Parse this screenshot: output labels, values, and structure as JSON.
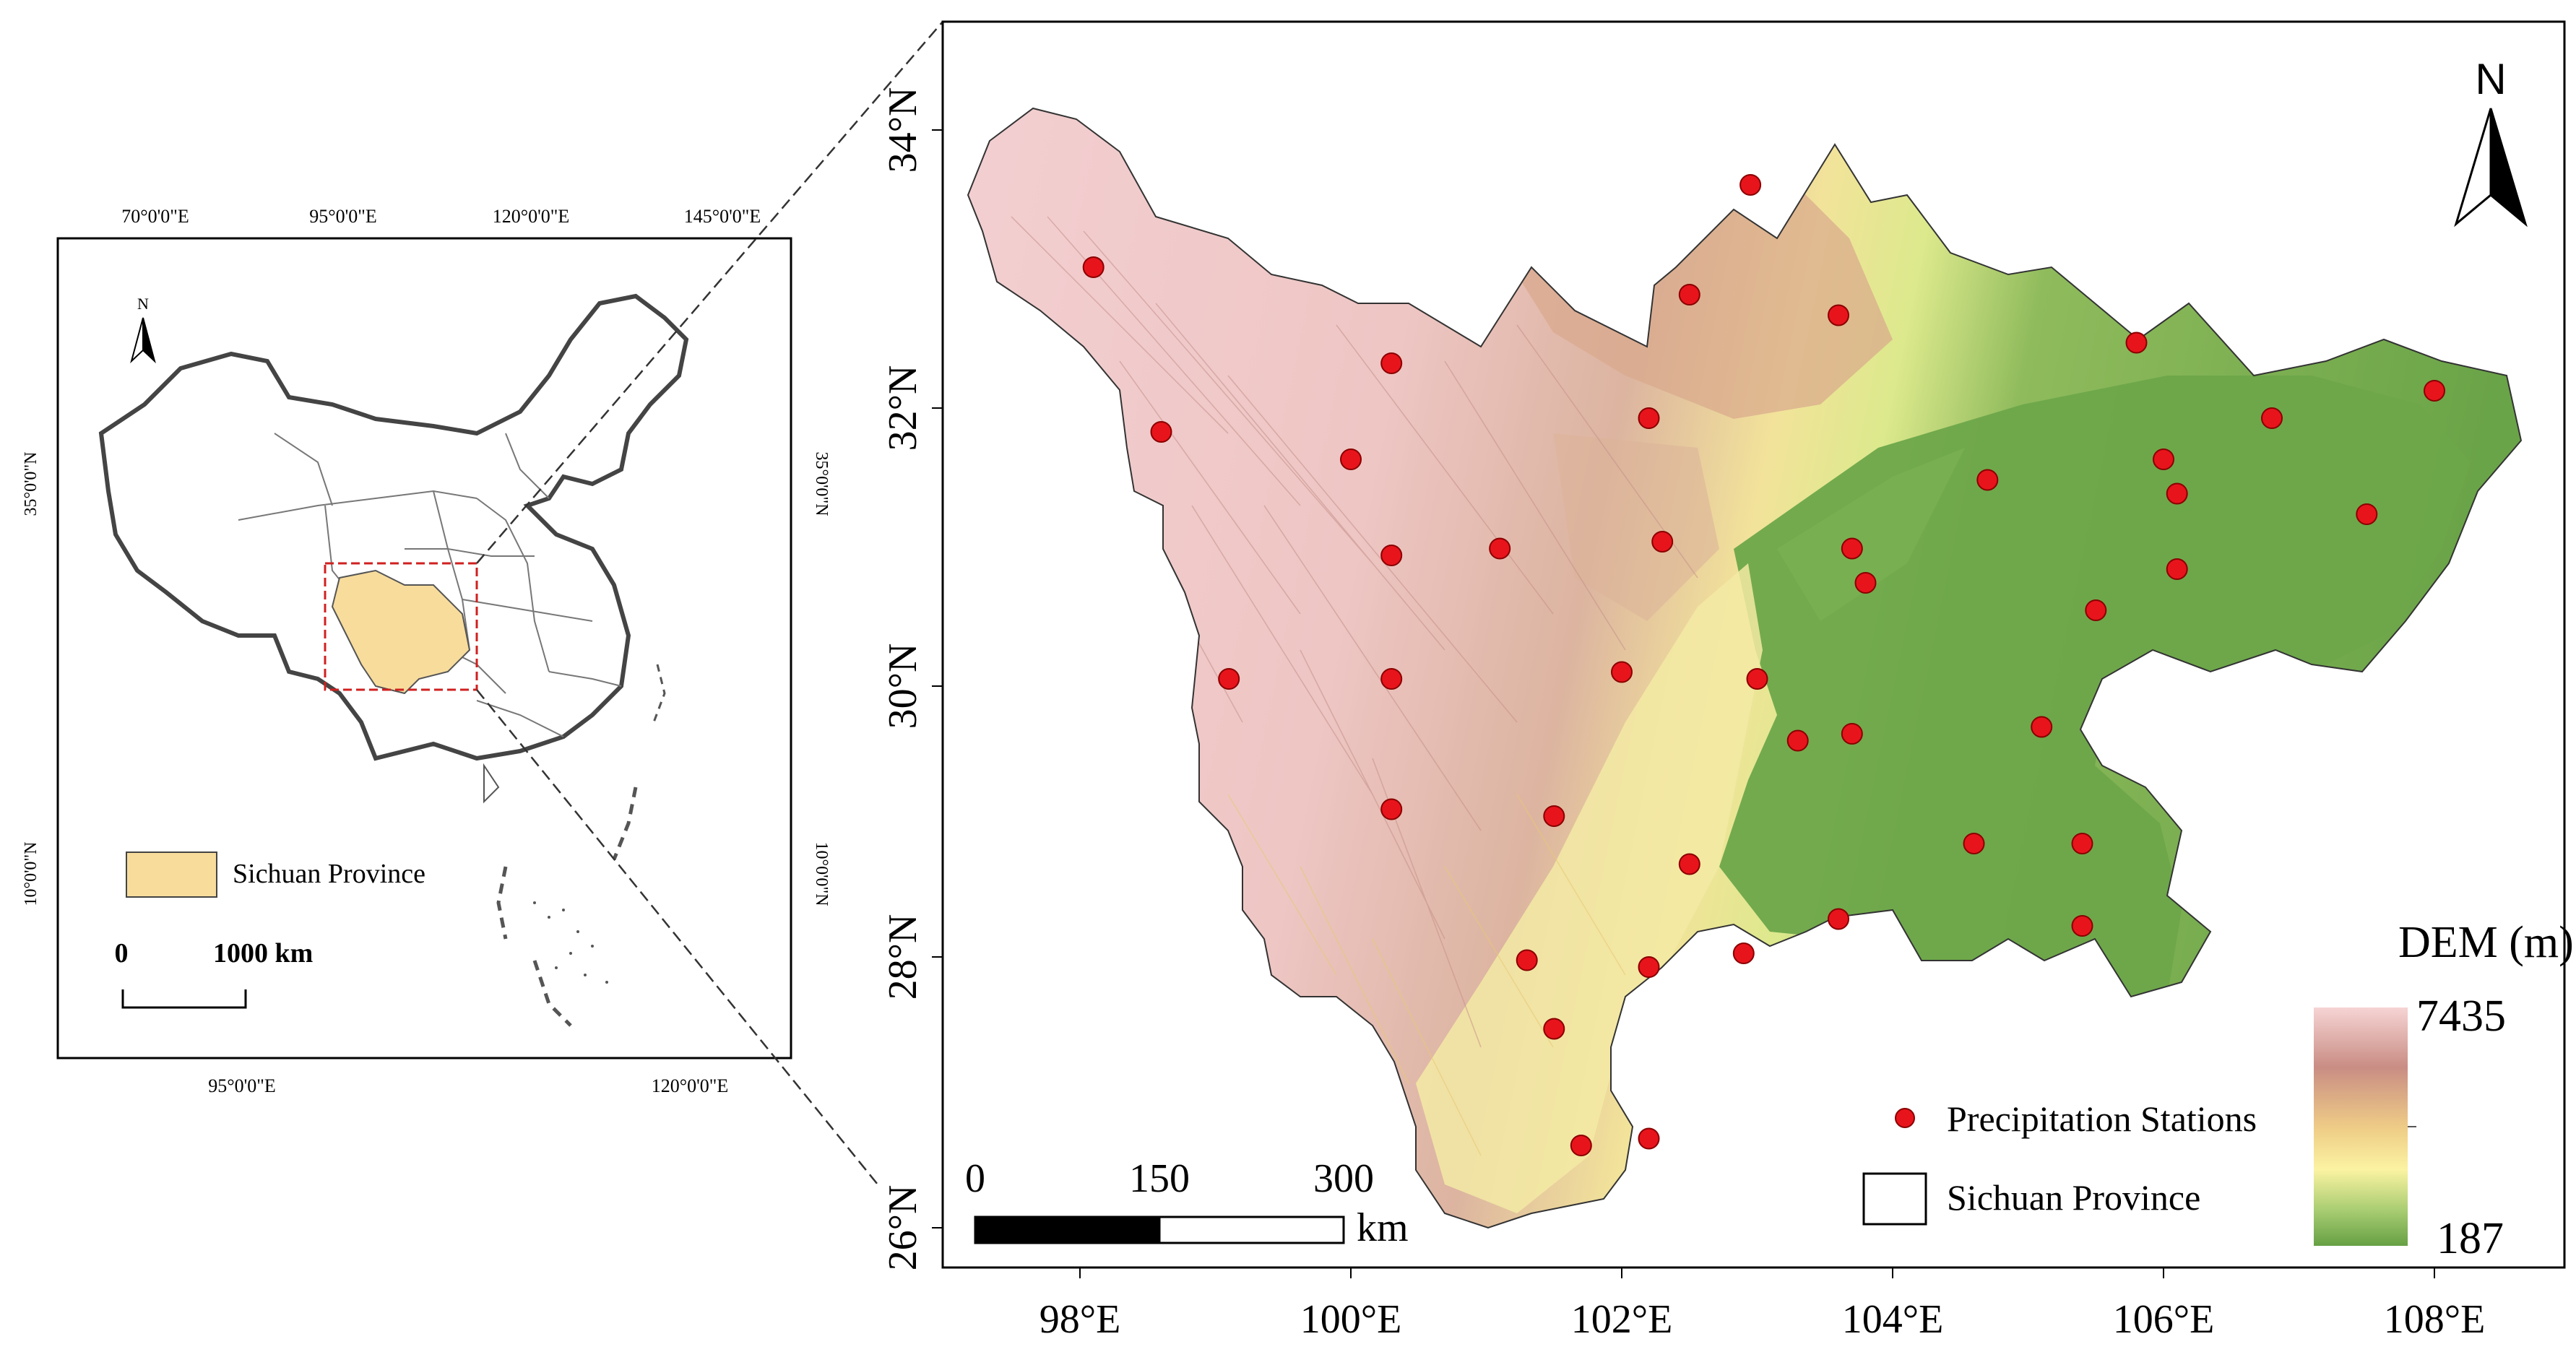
{
  "inset": {
    "top_lon_labels": [
      "70°0'0\"E",
      "95°0'0\"E",
      "120°0'0\"E",
      "145°0'0\"E"
    ],
    "bottom_lon_labels": [
      "95°0'0\"E",
      "120°0'0\"E"
    ],
    "left_lat_labels": [
      "35°0'0\"N",
      "10°0'0\"N"
    ],
    "right_lat_labels": [
      "35°0'0\"N",
      "10°0'0\"N"
    ],
    "north_label": "N",
    "legend_label": "Sichuan Province",
    "legend_color": "#f8dc9c",
    "scale_zero": "0",
    "scale_text": "1000 km"
  },
  "main": {
    "x_labels": [
      "98°E",
      "100°E",
      "102°E",
      "104°E",
      "106°E",
      "108°E"
    ],
    "y_labels": [
      "26°N",
      "28°N",
      "30°N",
      "32°N",
      "34°N"
    ],
    "north_label": "N",
    "scale_ticks": [
      "0",
      "150",
      "300"
    ],
    "scale_unit": "km",
    "legend_station_label": "Precipitation Stations",
    "legend_province_label": "Sichuan Province",
    "dem_title": "DEM (m)",
    "dem_max": "7435",
    "dem_min": "187",
    "station_color": "#e8141c",
    "ramp_colors": [
      "#f6d4d4",
      "#c98d84",
      "#eecb86",
      "#fbf3a2",
      "#a9cd72",
      "#66a044"
    ]
  },
  "stations": [
    {
      "lon": 98.1,
      "lat": 33.0
    },
    {
      "lon": 98.6,
      "lat": 31.8
    },
    {
      "lon": 99.1,
      "lat": 30.0
    },
    {
      "lon": 100.0,
      "lat": 31.6
    },
    {
      "lon": 100.3,
      "lat": 32.3
    },
    {
      "lon": 100.3,
      "lat": 30.9
    },
    {
      "lon": 100.3,
      "lat": 30.0
    },
    {
      "lon": 100.3,
      "lat": 29.05
    },
    {
      "lon": 101.1,
      "lat": 30.95
    },
    {
      "lon": 101.5,
      "lat": 29.0
    },
    {
      "lon": 101.3,
      "lat": 27.95
    },
    {
      "lon": 101.5,
      "lat": 27.45
    },
    {
      "lon": 101.7,
      "lat": 26.6
    },
    {
      "lon": 102.2,
      "lat": 26.65
    },
    {
      "lon": 102.2,
      "lat": 27.9
    },
    {
      "lon": 102.0,
      "lat": 30.05
    },
    {
      "lon": 102.2,
      "lat": 31.9
    },
    {
      "lon": 102.3,
      "lat": 31.0
    },
    {
      "lon": 102.5,
      "lat": 32.8
    },
    {
      "lon": 102.5,
      "lat": 28.65
    },
    {
      "lon": 102.9,
      "lat": 28.0
    },
    {
      "lon": 102.95,
      "lat": 33.6
    },
    {
      "lon": 103.0,
      "lat": 30.0
    },
    {
      "lon": 103.3,
      "lat": 29.55
    },
    {
      "lon": 103.6,
      "lat": 32.65
    },
    {
      "lon": 103.6,
      "lat": 28.25
    },
    {
      "lon": 103.7,
      "lat": 30.95
    },
    {
      "lon": 103.7,
      "lat": 29.6
    },
    {
      "lon": 103.8,
      "lat": 30.7
    },
    {
      "lon": 104.7,
      "lat": 31.45
    },
    {
      "lon": 104.6,
      "lat": 28.8
    },
    {
      "lon": 105.1,
      "lat": 29.65
    },
    {
      "lon": 105.4,
      "lat": 28.8
    },
    {
      "lon": 105.4,
      "lat": 28.2
    },
    {
      "lon": 105.5,
      "lat": 30.5
    },
    {
      "lon": 105.8,
      "lat": 32.45
    },
    {
      "lon": 106.0,
      "lat": 31.6
    },
    {
      "lon": 106.1,
      "lat": 31.35
    },
    {
      "lon": 106.1,
      "lat": 30.8
    },
    {
      "lon": 106.8,
      "lat": 31.9
    },
    {
      "lon": 107.5,
      "lat": 31.2
    },
    {
      "lon": 108.0,
      "lat": 32.1
    }
  ]
}
